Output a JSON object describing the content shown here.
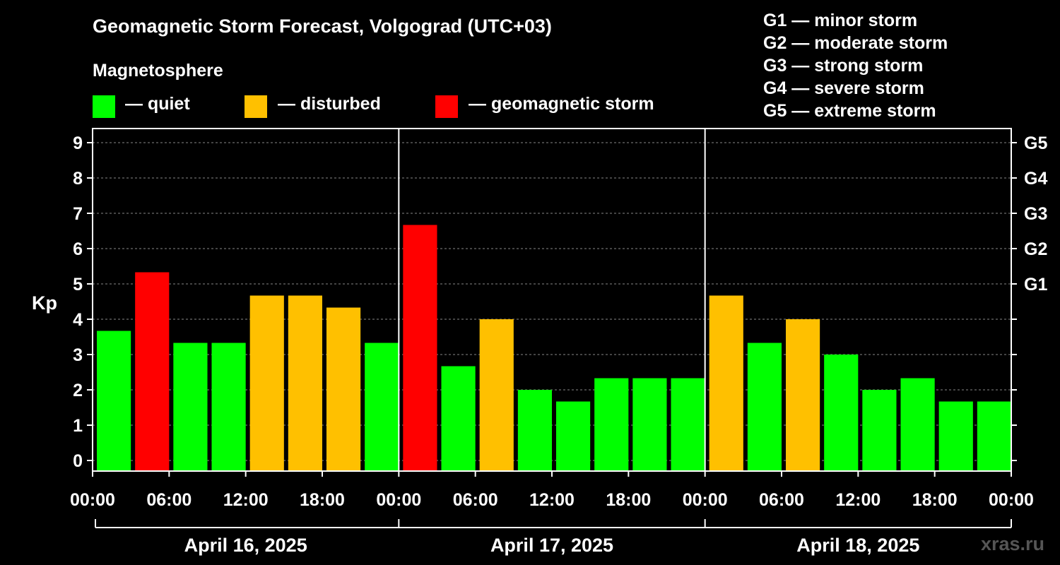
{
  "title": "Geomagnetic Storm Forecast, Volgograd (UTC+03)",
  "magnetosphere_title": "Magnetosphere",
  "legend": [
    {
      "label": "— quiet",
      "color": "#00ff00"
    },
    {
      "label": "— disturbed",
      "color": "#ffc000"
    },
    {
      "label": "— geomagnetic storm",
      "color": "#ff0000"
    }
  ],
  "g_legend": [
    "G1 — minor storm",
    "G2 — moderate storm",
    "G3 — strong storm",
    "G4 — severe storm",
    "G5 — extreme storm"
  ],
  "watermark": "xras.ru",
  "chart_data": {
    "type": "bar",
    "ylabel": "Kp",
    "ylim": [
      -0.3,
      9.4
    ],
    "yticks": [
      0,
      1,
      2,
      3,
      4,
      5,
      6,
      7,
      8,
      9
    ],
    "right_ticks": [
      {
        "value": 5,
        "label": "G1"
      },
      {
        "value": 6,
        "label": "G2"
      },
      {
        "value": 7,
        "label": "G3"
      },
      {
        "value": 8,
        "label": "G4"
      },
      {
        "value": 9,
        "label": "G5"
      }
    ],
    "grid": "dashed horizontal at integer Kp",
    "xtick_labels": [
      "00:00",
      "06:00",
      "12:00",
      "18:00",
      "00:00",
      "06:00",
      "12:00",
      "18:00",
      "00:00",
      "06:00",
      "12:00",
      "18:00",
      "00:00"
    ],
    "days": [
      "April 16, 2025",
      "April 17, 2025",
      "April 18, 2025"
    ],
    "colors": {
      "quiet": "#00ff00",
      "disturbed": "#ffc000",
      "storm": "#ff0000"
    },
    "values": [
      3.67,
      5.33,
      3.33,
      3.33,
      4.67,
      4.67,
      4.33,
      3.33,
      6.67,
      2.67,
      4.0,
      2.0,
      1.67,
      2.33,
      2.33,
      2.33,
      4.67,
      3.33,
      4.0,
      3.0,
      2.0,
      2.33,
      1.67,
      1.67
    ],
    "categories": [
      "quiet",
      "storm",
      "quiet",
      "quiet",
      "disturbed",
      "disturbed",
      "disturbed",
      "quiet",
      "storm",
      "quiet",
      "disturbed",
      "quiet",
      "quiet",
      "quiet",
      "quiet",
      "quiet",
      "disturbed",
      "quiet",
      "disturbed",
      "quiet",
      "quiet",
      "quiet",
      "quiet",
      "quiet"
    ]
  }
}
